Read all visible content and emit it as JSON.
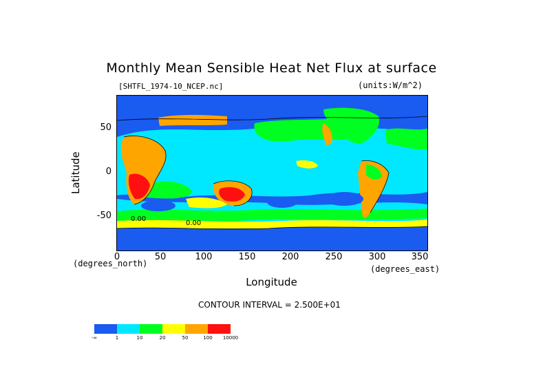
{
  "map": {
    "title": "Monthly Mean Sensible Heat Net Flux at surface",
    "file_label": "[SHTFL_1974-10_NCEP.nc]",
    "units_label": "(units:W/m^2)",
    "y_axis": {
      "label": "Latitude",
      "ticks": [
        "50",
        "0",
        "-50"
      ],
      "unit_note": "(degrees_north)"
    },
    "x_axis": {
      "label": "Longitude",
      "ticks": [
        "0",
        "50",
        "100",
        "150",
        "200",
        "250",
        "300",
        "350"
      ],
      "unit_note": "(degrees_east)"
    },
    "contour_text": "CONTOUR INTERVAL = 2.500E+01",
    "inline_contour_labels": [
      "0.00",
      "0.00"
    ],
    "legend": {
      "colors": [
        "#1a5bf0",
        "#00e8ff",
        "#00ff20",
        "#ffff00",
        "#ffa500",
        "#ff1010"
      ],
      "labels": [
        "-∞",
        "1",
        "10",
        "20",
        "50",
        "100",
        "10000"
      ]
    },
    "palette": {
      "land_hot": "#ff1010",
      "land_warm": "#ffa500",
      "ocean_cold": "#1a5bf0",
      "ocean_cool": "#00e8ff",
      "mid": "#00ff20",
      "warm": "#ffff00"
    }
  }
}
